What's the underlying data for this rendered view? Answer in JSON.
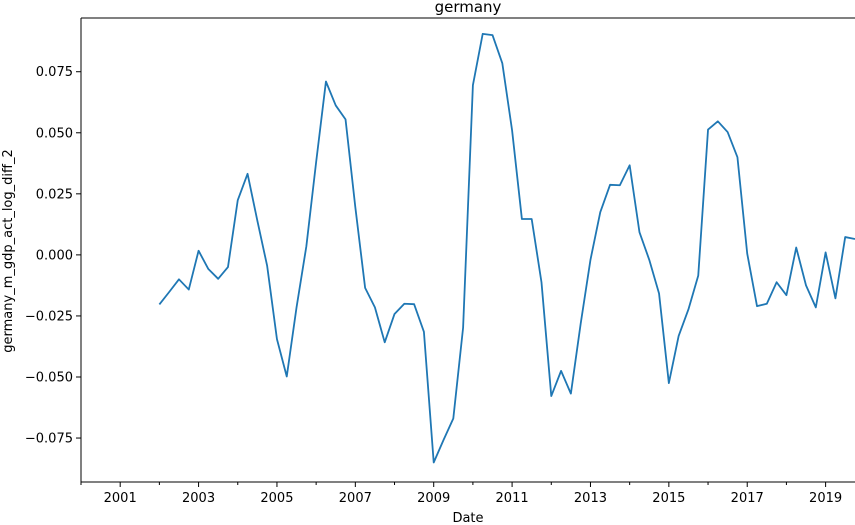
{
  "chart_data": {
    "type": "line",
    "title": "germany",
    "xlabel": "Date",
    "ylabel": "germany_m_gdp_act_log_diff_2",
    "xlim": [
      2000.0,
      2019.75
    ],
    "ylim": [
      -0.093,
      0.097
    ],
    "x_ticks": [
      "2001",
      "2003",
      "2005",
      "2007",
      "2009",
      "2011",
      "2013",
      "2015",
      "2017",
      "2019"
    ],
    "y_ticks": [
      "0.075",
      "0.050",
      "0.025",
      "0.000",
      "−0.025",
      "−0.050",
      "−0.075"
    ],
    "grid": false,
    "legend": "none",
    "series": [
      {
        "color": "#1f77b4",
        "x": [
          2002.0,
          2002.25,
          2002.5,
          2002.75,
          2003.0,
          2003.25,
          2003.5,
          2003.75,
          2004.0,
          2004.25,
          2004.5,
          2004.75,
          2005.0,
          2005.25,
          2005.5,
          2005.75,
          2006.0,
          2006.25,
          2006.5,
          2006.75,
          2007.0,
          2007.25,
          2007.5,
          2007.75,
          2008.0,
          2008.25,
          2008.5,
          2008.75,
          2009.0,
          2009.25,
          2009.5,
          2009.75,
          2010.0,
          2010.25,
          2010.5,
          2010.75,
          2011.0,
          2011.25,
          2011.5,
          2011.75,
          2012.0,
          2012.25,
          2012.5,
          2012.75,
          2013.0,
          2013.25,
          2013.5,
          2013.75,
          2014.0,
          2014.25,
          2014.5,
          2014.75,
          2015.0,
          2015.25,
          2015.5,
          2015.75,
          2016.0,
          2016.25,
          2016.5,
          2016.75,
          2017.0,
          2017.25,
          2017.5,
          2017.75,
          2018.0,
          2018.25,
          2018.5,
          2018.75,
          2019.0,
          2019.25,
          2019.5,
          2019.75
        ],
        "values": [
          -0.0203,
          -0.0152,
          -0.01,
          -0.0142,
          0.0017,
          -0.0058,
          -0.0098,
          -0.005,
          0.0224,
          0.0332,
          0.014,
          -0.0045,
          -0.0345,
          -0.0498,
          -0.0215,
          0.0035,
          0.038,
          0.071,
          0.0612,
          0.0555,
          0.0195,
          -0.0135,
          -0.0215,
          -0.0358,
          -0.0242,
          -0.02,
          -0.0202,
          -0.0315,
          -0.085,
          -0.0758,
          -0.067,
          -0.0298,
          0.0695,
          0.0905,
          0.09,
          0.0785,
          0.051,
          0.0147,
          0.0147,
          -0.0112,
          -0.0578,
          -0.0475,
          -0.0568,
          -0.0282,
          -0.002,
          0.0175,
          0.0287,
          0.0285,
          0.0367,
          0.0093,
          -0.002,
          -0.0158,
          -0.0525,
          -0.0332,
          -0.0223,
          -0.0085,
          0.0513,
          0.0547,
          0.0503,
          0.04,
          0.0005,
          -0.021,
          -0.02,
          -0.0112,
          -0.0165,
          0.003,
          -0.0125,
          -0.0215,
          0.001,
          -0.0178,
          0.0073,
          0.0065
        ]
      }
    ]
  }
}
